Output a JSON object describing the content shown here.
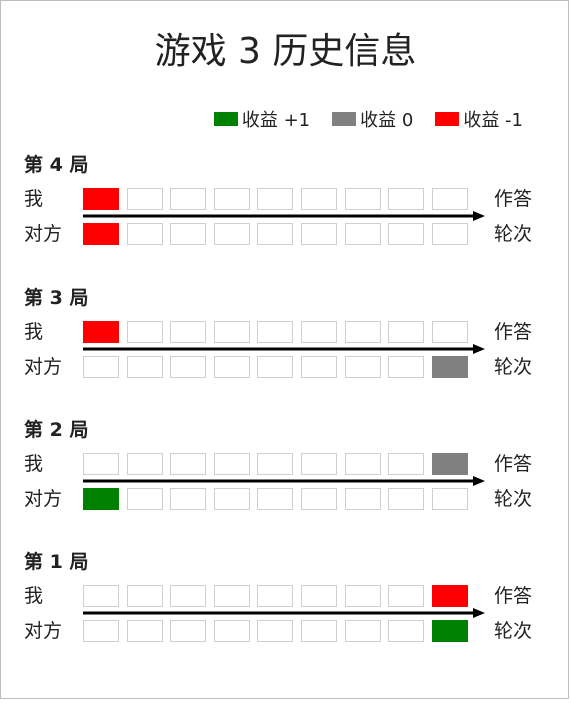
{
  "title": "游戏 3 历史信息",
  "legend": [
    {
      "label": "收益 +1",
      "color": "#008000"
    },
    {
      "label": "收益 0",
      "color": "#808080"
    },
    {
      "label": "收益 -1",
      "color": "#ff0000"
    }
  ],
  "row_labels": {
    "me": "我",
    "opponent": "对方"
  },
  "side_labels": {
    "answer": "作答",
    "turn": "轮次"
  },
  "cells_per_row": 9,
  "rounds": [
    {
      "title": "第 4 局",
      "me": [
        "loss",
        "empty",
        "empty",
        "empty",
        "empty",
        "empty",
        "empty",
        "empty",
        "empty"
      ],
      "opponent": [
        "loss",
        "empty",
        "empty",
        "empty",
        "empty",
        "empty",
        "empty",
        "empty",
        "empty"
      ]
    },
    {
      "title": "第 3 局",
      "me": [
        "loss",
        "empty",
        "empty",
        "empty",
        "empty",
        "empty",
        "empty",
        "empty",
        "empty"
      ],
      "opponent": [
        "empty",
        "empty",
        "empty",
        "empty",
        "empty",
        "empty",
        "empty",
        "empty",
        "draw"
      ]
    },
    {
      "title": "第 2 局",
      "me": [
        "empty",
        "empty",
        "empty",
        "empty",
        "empty",
        "empty",
        "empty",
        "empty",
        "draw"
      ],
      "opponent": [
        "win",
        "empty",
        "empty",
        "empty",
        "empty",
        "empty",
        "empty",
        "empty",
        "empty"
      ]
    },
    {
      "title": "第 1 局",
      "me": [
        "empty",
        "empty",
        "empty",
        "empty",
        "empty",
        "empty",
        "empty",
        "empty",
        "loss"
      ],
      "opponent": [
        "empty",
        "empty",
        "empty",
        "empty",
        "empty",
        "empty",
        "empty",
        "empty",
        "win"
      ]
    }
  ]
}
